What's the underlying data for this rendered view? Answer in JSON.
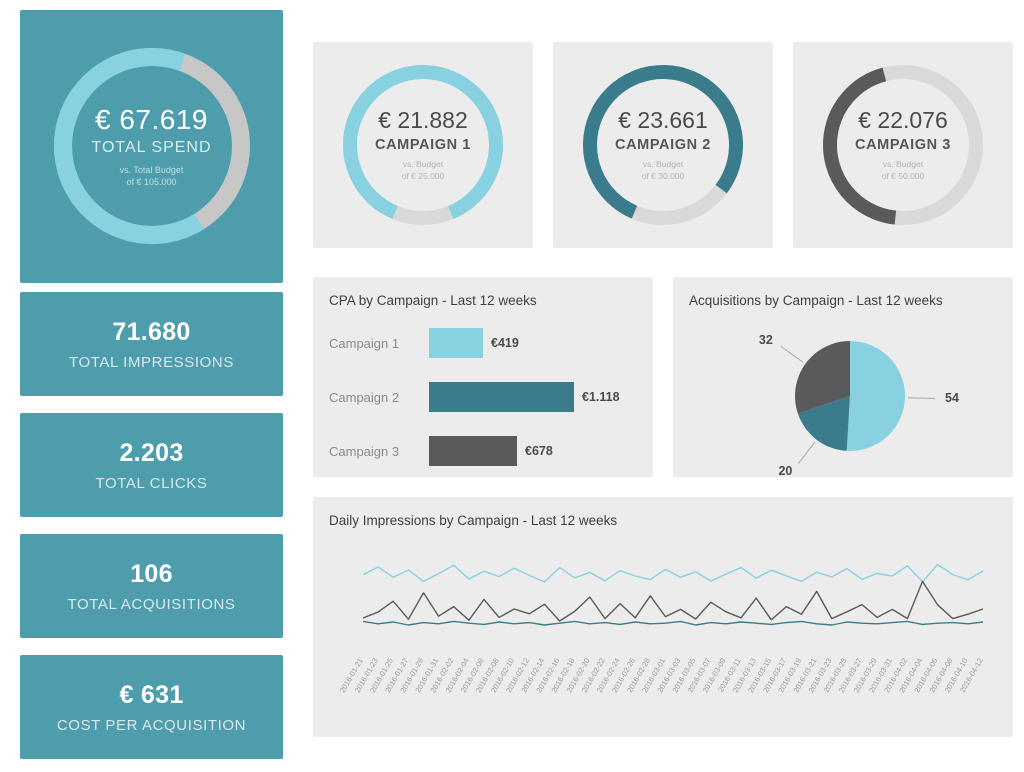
{
  "colors": {
    "teal": "#4e9dac",
    "light_blue": "#87d1e1",
    "dark_teal": "#3a7c8c",
    "dark_gray": "#595a5c",
    "card_bg": "#ececec",
    "spend_track": "#c7c7c7",
    "gauge_track": "#d9d9d9",
    "title_text": "#3f3f3f",
    "muted_text": "#999999"
  },
  "sidebar": {
    "spend_card": {
      "value": "€ 67.619",
      "label": "TOTAL SPEND",
      "sub1": "vs. Total Budget",
      "sub2": "of € 105.000",
      "percent": 64.4
    },
    "stats": [
      {
        "value": "71.680",
        "label": "TOTAL IMPRESSIONS"
      },
      {
        "value": "2.203",
        "label": "TOTAL CLICKS"
      },
      {
        "value": "106",
        "label": "TOTAL ACQUISITIONS"
      },
      {
        "value": "€ 631",
        "label": "COST PER ACQUISITION"
      }
    ]
  },
  "gauges": [
    {
      "value": "€ 21.882",
      "label": "CAMPAIGN 1",
      "sub1": "vs. Budget",
      "sub2": "of € 25.000",
      "percent": 87.5,
      "color": "#87d1e1"
    },
    {
      "value": "€ 23.661",
      "label": "CAMPAIGN 2",
      "sub1": "vs. Budget",
      "sub2": "of € 30.000",
      "percent": 78.9,
      "color": "#3a7c8c"
    },
    {
      "value": "€ 22.076",
      "label": "CAMPAIGN 3",
      "sub1": "vs. Budget",
      "sub2": "of € 50.000",
      "percent": 44.2,
      "color": "#595a5c"
    }
  ],
  "chart_data": [
    {
      "type": "bar",
      "title": "CPA by Campaign - Last 12 weeks",
      "orientation": "horizontal",
      "categories": [
        "Campaign 1",
        "Campaign 2",
        "Campaign 3"
      ],
      "values": [
        419,
        1118,
        678
      ],
      "value_labels": [
        "€419",
        "€1.118",
        "€678"
      ],
      "colors": [
        "#87d1e1",
        "#3a7c8c",
        "#595a5c"
      ],
      "xlim": [
        0,
        1250
      ],
      "grid": false,
      "legend": "none"
    },
    {
      "type": "pie",
      "title": "Acquisitions by Campaign - Last 12 weeks",
      "categories": [
        "Campaign 1",
        "Campaign 2",
        "Campaign 3"
      ],
      "values": [
        54,
        20,
        32
      ],
      "colors": [
        "#87d1e1",
        "#3a7c8c",
        "#595a5c"
      ],
      "start_angle_deg": 0,
      "direction": "clockwise",
      "legend": "none"
    },
    {
      "type": "line",
      "title": "Daily Impressions by Campaign - Last 12 weeks",
      "x": [
        "2016-01-21",
        "2016-01-23",
        "2016-01-25",
        "2016-01-27",
        "2016-01-29",
        "2016-01-31",
        "2016-02-02",
        "2016-02-04",
        "2016-02-06",
        "2016-02-08",
        "2016-02-10",
        "2016-02-12",
        "2016-02-14",
        "2016-02-16",
        "2016-02-18",
        "2016-02-20",
        "2016-02-22",
        "2016-02-24",
        "2016-02-26",
        "2016-02-28",
        "2016-03-01",
        "2016-03-03",
        "2016-03-05",
        "2016-03-07",
        "2016-03-09",
        "2016-03-11",
        "2016-03-13",
        "2016-03-15",
        "2016-03-17",
        "2016-03-19",
        "2016-03-21",
        "2016-03-23",
        "2016-03-25",
        "2016-03-27",
        "2016-03-29",
        "2016-03-31",
        "2016-04-02",
        "2016-04-04",
        "2016-04-06",
        "2016-04-08",
        "2016-04-10",
        "2016-04-12"
      ],
      "series": [
        {
          "name": "Campaign 1",
          "color": "#87d1e1",
          "values": [
            1010,
            1075,
            990,
            1050,
            955,
            1020,
            1090,
            975,
            1040,
            995,
            1065,
            1005,
            950,
            1070,
            985,
            1030,
            960,
            1045,
            1000,
            970,
            1055,
            990,
            1035,
            958,
            1015,
            1072,
            982,
            1048,
            1002,
            955,
            1032,
            992,
            1062,
            972,
            1022,
            1000,
            1085,
            952,
            1095,
            1012,
            968,
            1042
          ]
        },
        {
          "name": "Campaign 2",
          "color": "#3a7c8c",
          "values": [
            622,
            602,
            617,
            592,
            612,
            602,
            622,
            607,
            597,
            617,
            602,
            612,
            592,
            607,
            622,
            602,
            612,
            597,
            617,
            602,
            607,
            622,
            592,
            612,
            602,
            617,
            607,
            597,
            612,
            622,
            602,
            592,
            617,
            607,
            602,
            612,
            622,
            597,
            607,
            612,
            602,
            617
          ]
        },
        {
          "name": "Campaign 3",
          "color": "#595a5c",
          "values": [
            650,
            700,
            790,
            640,
            860,
            665,
            745,
            632,
            805,
            655,
            725,
            685,
            765,
            625,
            705,
            825,
            645,
            770,
            652,
            835,
            662,
            722,
            642,
            782,
            702,
            652,
            815,
            635,
            745,
            682,
            872,
            645,
            702,
            762,
            655,
            722,
            645,
            955,
            760,
            645,
            682,
            725
          ]
        }
      ],
      "ylim": [
        400,
        1200
      ],
      "grid": false,
      "legend": "none",
      "x_tick_rotation_deg": -60
    }
  ]
}
